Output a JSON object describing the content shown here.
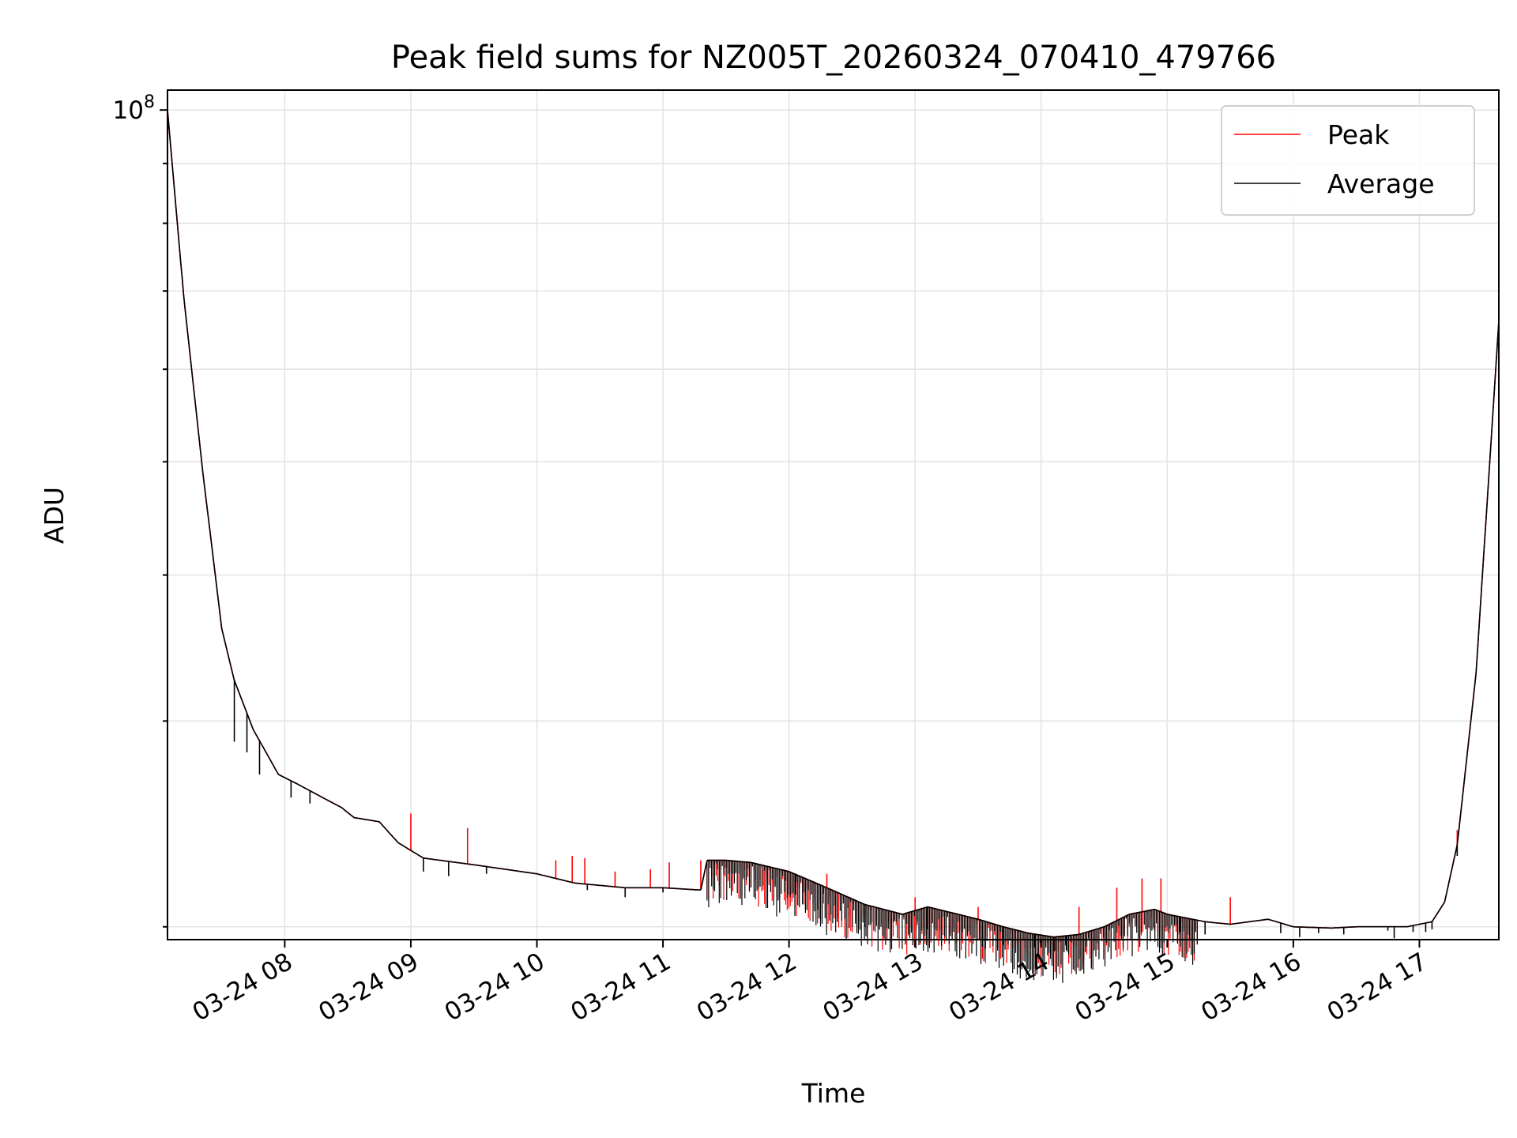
{
  "chart_data": {
    "type": "line",
    "title": "Peak field sums for NZ005T_20260324_070410_479766",
    "xlabel": "Time",
    "ylabel": "ADU",
    "y_scale": "log",
    "x_range_hours": [
      7.07,
      17.63
    ],
    "ylim": [
      19500000.0,
      104000000.0
    ],
    "x_ticks": [
      {
        "hour": 8,
        "label": "03-24 08"
      },
      {
        "hour": 9,
        "label": "03-24 09"
      },
      {
        "hour": 10,
        "label": "03-24 10"
      },
      {
        "hour": 11,
        "label": "03-24 11"
      },
      {
        "hour": 12,
        "label": "03-24 12"
      },
      {
        "hour": 13,
        "label": "03-24 13"
      },
      {
        "hour": 14,
        "label": "03-24 14"
      },
      {
        "hour": 15,
        "label": "03-24 15"
      },
      {
        "hour": 16,
        "label": "03-24 16"
      },
      {
        "hour": 17,
        "label": "03-24 17"
      }
    ],
    "y_major_tick": {
      "value": 100000000.0,
      "label_base": "10",
      "label_exp": "8"
    },
    "y_minor_ticks": [
      20000000.0,
      30000000.0,
      40000000.0,
      50000000.0,
      60000000.0,
      70000000.0,
      80000000.0,
      90000000.0
    ],
    "grid": true,
    "legend_position": "top-right",
    "series": [
      {
        "name": "Peak",
        "color": "#ff0000",
        "baseline": [
          [
            7.07,
            100000000.0
          ],
          [
            7.2,
            69000000.0
          ],
          [
            7.35,
            49000000.0
          ],
          [
            7.5,
            36000000.0
          ],
          [
            7.6,
            32500000.0
          ],
          [
            7.75,
            29500000.0
          ],
          [
            7.95,
            27000000.0
          ],
          [
            8.1,
            26500000.0
          ],
          [
            8.3,
            25800000.0
          ],
          [
            8.45,
            25300000.0
          ],
          [
            8.55,
            24800000.0
          ],
          [
            8.75,
            24600000.0
          ],
          [
            8.9,
            23600000.0
          ],
          [
            9.1,
            22900000.0
          ],
          [
            9.5,
            22600000.0
          ],
          [
            10.0,
            22200000.0
          ],
          [
            10.3,
            21800000.0
          ],
          [
            10.7,
            21600000.0
          ],
          [
            11.0,
            21600000.0
          ],
          [
            11.3,
            21500000.0
          ],
          [
            11.35,
            22800000.0
          ],
          [
            11.5,
            22800000.0
          ],
          [
            11.7,
            22700000.0
          ],
          [
            12.0,
            22300000.0
          ],
          [
            12.3,
            21600000.0
          ],
          [
            12.6,
            20900000.0
          ],
          [
            12.9,
            20500000.0
          ],
          [
            13.1,
            20800000.0
          ],
          [
            13.3,
            20550000.0
          ],
          [
            13.5,
            20300000.0
          ],
          [
            13.7,
            20000000.0
          ],
          [
            13.9,
            19750000.0
          ],
          [
            14.1,
            19600000.0
          ],
          [
            14.3,
            19700000.0
          ],
          [
            14.5,
            20000000.0
          ],
          [
            14.7,
            20500000.0
          ],
          [
            14.9,
            20700000.0
          ],
          [
            15.0,
            20500000.0
          ],
          [
            15.3,
            20200000.0
          ],
          [
            15.5,
            20100000.0
          ],
          [
            15.8,
            20300000.0
          ],
          [
            16.0,
            20000000.0
          ],
          [
            16.3,
            19950000.0
          ],
          [
            16.5,
            20000000.0
          ],
          [
            16.9,
            20000000.0
          ],
          [
            17.1,
            20200000.0
          ],
          [
            17.2,
            21000000.0
          ],
          [
            17.3,
            23500000.0
          ],
          [
            17.45,
            33000000.0
          ],
          [
            17.63,
            66000000.0
          ]
        ],
        "spikes": [
          [
            9.0,
            25000000.0
          ],
          [
            9.45,
            24300000.0
          ],
          [
            10.15,
            22800000.0
          ],
          [
            10.28,
            23000000.0
          ],
          [
            10.38,
            22900000.0
          ],
          [
            10.62,
            22300000.0
          ],
          [
            10.9,
            22400000.0
          ],
          [
            11.05,
            22700000.0
          ],
          [
            11.3,
            22800000.0
          ],
          [
            12.3,
            22200000.0
          ],
          [
            13.0,
            21200000.0
          ],
          [
            13.5,
            20800000.0
          ],
          [
            14.3,
            20800000.0
          ],
          [
            14.6,
            21600000.0
          ],
          [
            14.8,
            22000000.0
          ],
          [
            14.95,
            22000000.0
          ],
          [
            15.5,
            21200000.0
          ],
          [
            17.3,
            24200000.0
          ]
        ]
      },
      {
        "name": "Average",
        "color": "#000000",
        "baseline": [
          [
            7.07,
            100000000.0
          ],
          [
            7.2,
            69000000.0
          ],
          [
            7.35,
            49000000.0
          ],
          [
            7.5,
            36000000.0
          ],
          [
            7.6,
            32500000.0
          ],
          [
            7.75,
            29500000.0
          ],
          [
            7.95,
            27000000.0
          ],
          [
            8.1,
            26500000.0
          ],
          [
            8.3,
            25800000.0
          ],
          [
            8.45,
            25300000.0
          ],
          [
            8.55,
            24800000.0
          ],
          [
            8.75,
            24600000.0
          ],
          [
            8.9,
            23600000.0
          ],
          [
            9.1,
            22900000.0
          ],
          [
            9.5,
            22600000.0
          ],
          [
            10.0,
            22200000.0
          ],
          [
            10.3,
            21800000.0
          ],
          [
            10.7,
            21600000.0
          ],
          [
            11.0,
            21600000.0
          ],
          [
            11.3,
            21500000.0
          ],
          [
            11.35,
            22800000.0
          ],
          [
            11.5,
            22800000.0
          ],
          [
            11.7,
            22700000.0
          ],
          [
            12.0,
            22300000.0
          ],
          [
            12.3,
            21600000.0
          ],
          [
            12.6,
            20900000.0
          ],
          [
            12.9,
            20500000.0
          ],
          [
            13.1,
            20800000.0
          ],
          [
            13.3,
            20550000.0
          ],
          [
            13.5,
            20300000.0
          ],
          [
            13.7,
            20000000.0
          ],
          [
            13.9,
            19750000.0
          ],
          [
            14.1,
            19600000.0
          ],
          [
            14.3,
            19700000.0
          ],
          [
            14.5,
            20000000.0
          ],
          [
            14.7,
            20500000.0
          ],
          [
            14.9,
            20700000.0
          ],
          [
            15.0,
            20500000.0
          ],
          [
            15.3,
            20200000.0
          ],
          [
            15.5,
            20100000.0
          ],
          [
            15.8,
            20300000.0
          ],
          [
            16.0,
            20000000.0
          ],
          [
            16.3,
            19950000.0
          ],
          [
            16.5,
            20000000.0
          ],
          [
            16.9,
            20000000.0
          ],
          [
            17.1,
            20200000.0
          ],
          [
            17.2,
            21000000.0
          ],
          [
            17.3,
            23500000.0
          ],
          [
            17.45,
            33000000.0
          ],
          [
            17.63,
            66000000.0
          ]
        ],
        "dips": [
          [
            7.6,
            28800000.0
          ],
          [
            7.7,
            28200000.0
          ],
          [
            7.8,
            27000000.0
          ],
          [
            8.05,
            25800000.0
          ],
          [
            8.2,
            25500000.0
          ],
          [
            9.1,
            22300000.0
          ],
          [
            9.3,
            22100000.0
          ],
          [
            9.6,
            22200000.0
          ],
          [
            10.4,
            21500000.0
          ],
          [
            10.7,
            21200000.0
          ],
          [
            11.0,
            21400000.0
          ],
          [
            12.05,
            21300000.0
          ],
          [
            12.6,
            20000000.0
          ],
          [
            13.1,
            19900000.0
          ],
          [
            13.7,
            19300000.0
          ],
          [
            13.95,
            19200000.0
          ],
          [
            14.1,
            19050000.0
          ],
          [
            14.2,
            19100000.0
          ],
          [
            15.1,
            19800000.0
          ],
          [
            15.3,
            19700000.0
          ],
          [
            15.9,
            19750000.0
          ],
          [
            16.05,
            19600000.0
          ],
          [
            16.2,
            19750000.0
          ],
          [
            16.4,
            19700000.0
          ],
          [
            16.75,
            19850000.0
          ],
          [
            16.8,
            19550000.0
          ],
          [
            16.95,
            19800000.0
          ],
          [
            17.05,
            19800000.0
          ],
          [
            17.1,
            19900000.0
          ],
          [
            17.3,
            23000000.0
          ]
        ]
      }
    ]
  }
}
